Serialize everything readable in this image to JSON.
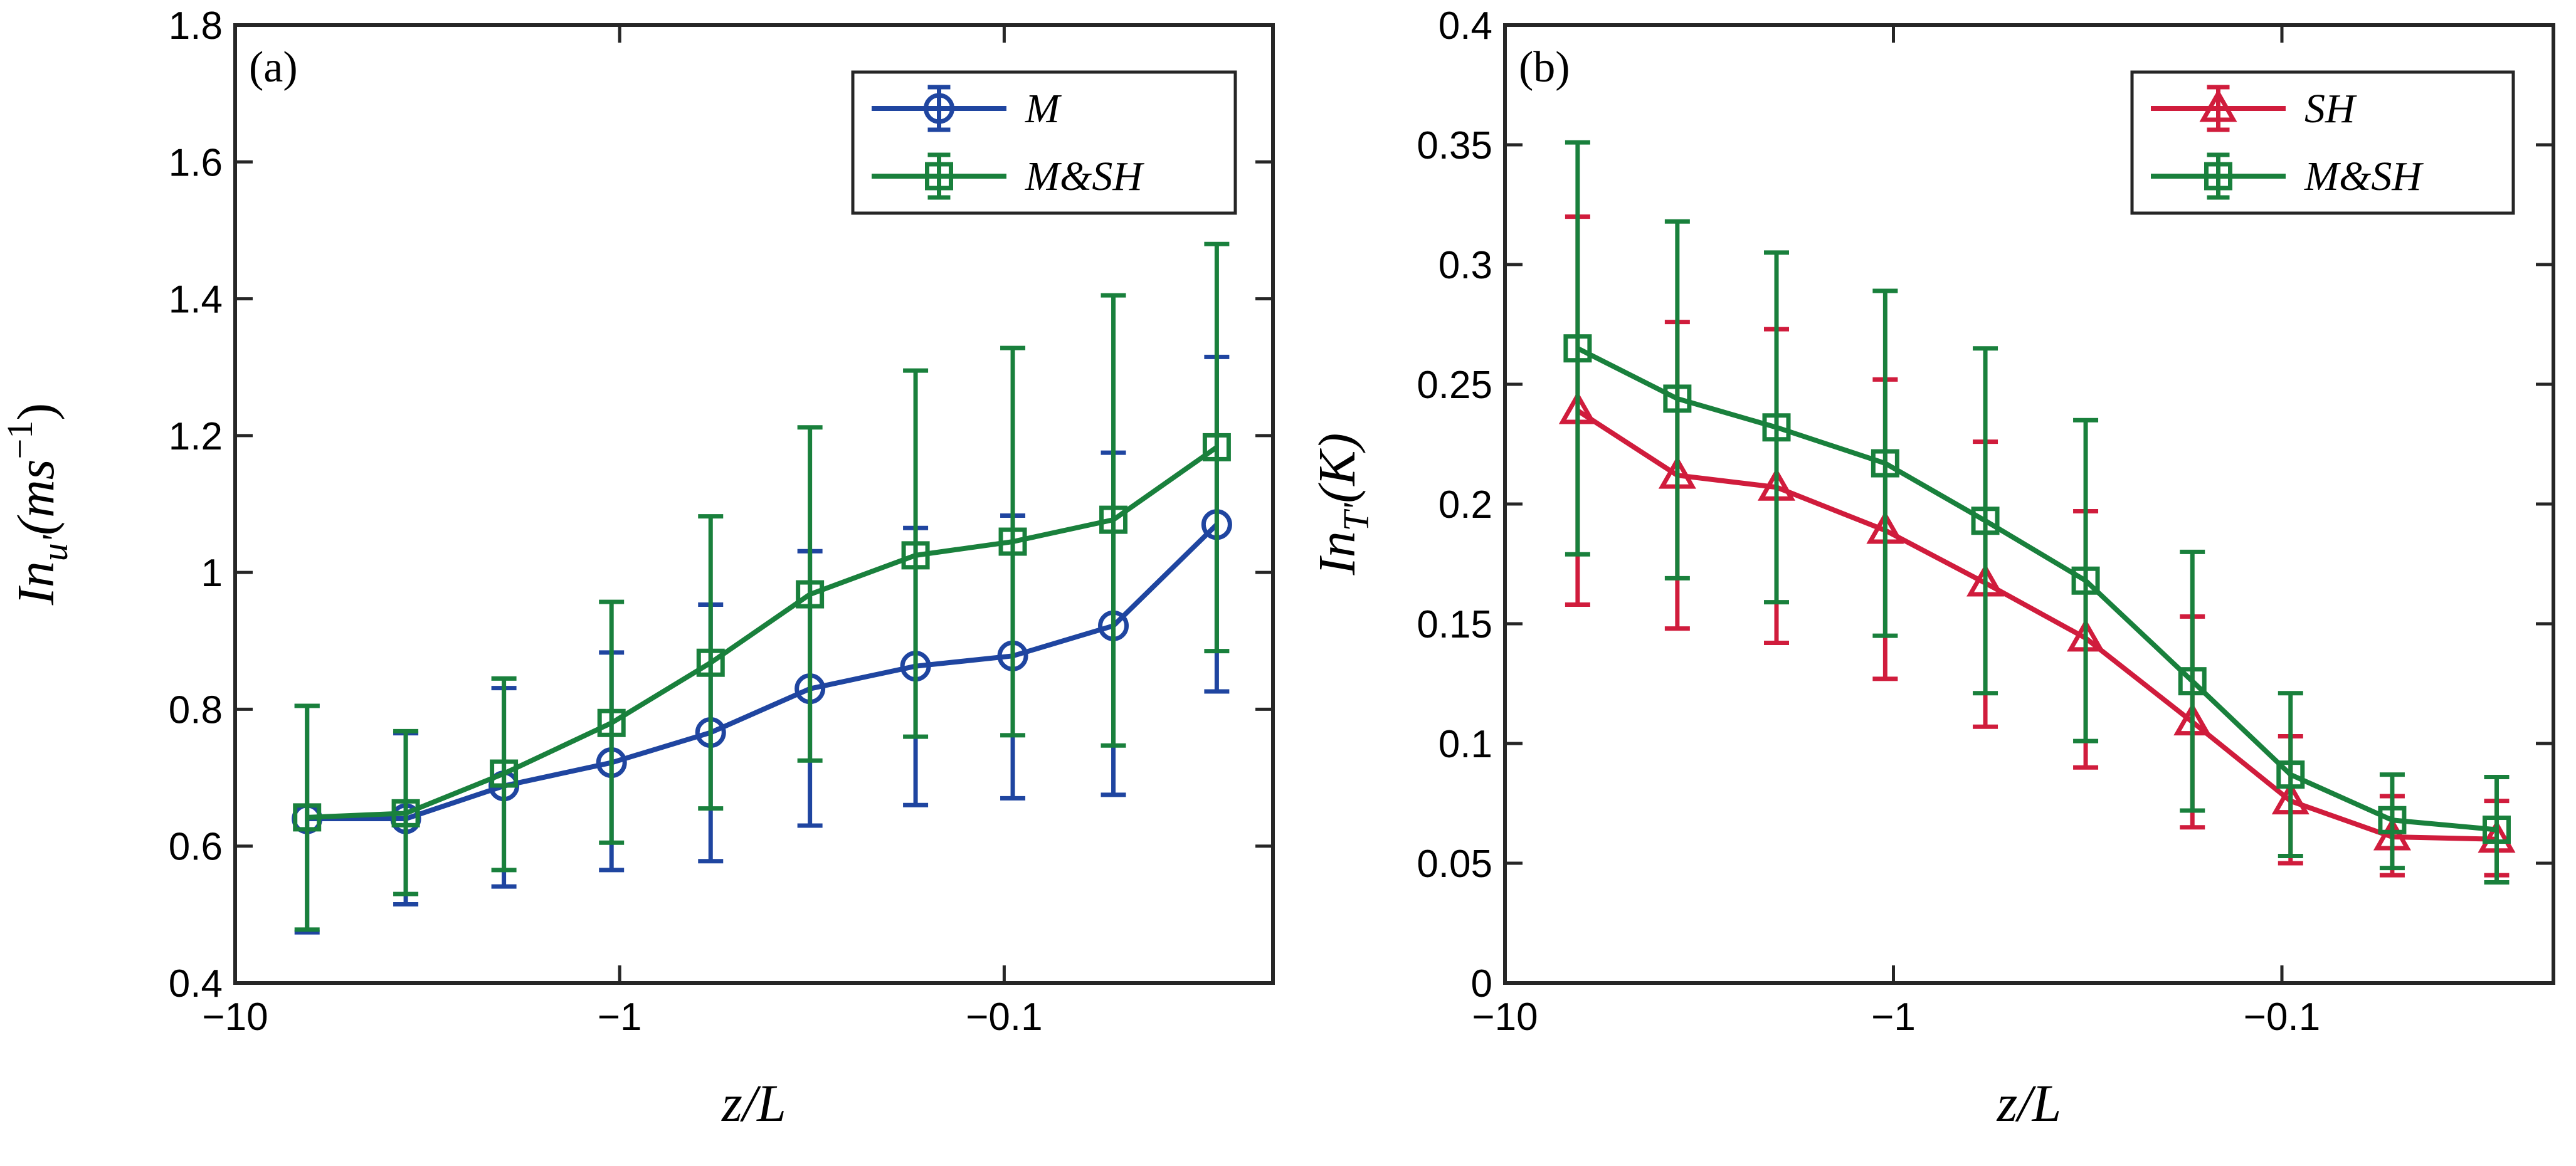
{
  "chart_data": [
    {
      "type": "line",
      "panel_label": "(a)",
      "x": [
        -6.5,
        -3.6,
        -2.0,
        -1.05,
        -0.58,
        -0.32,
        -0.17,
        -0.095,
        -0.052,
        -0.028
      ],
      "x_scale": "log-negative",
      "xlim": [
        -10,
        -0.02
      ],
      "xticks": [
        -10,
        -1,
        -0.1
      ],
      "xtick_labels": [
        "−10",
        "−1",
        "−0.1"
      ],
      "xlabel": "z/L",
      "ylim": [
        0.4,
        1.8
      ],
      "yticks": [
        0.4,
        0.6,
        0.8,
        1.0,
        1.2,
        1.4,
        1.6,
        1.8
      ],
      "ytick_labels": [
        "0.4",
        "0.6",
        "0.8",
        "1",
        "1.2",
        "1.4",
        "1.6",
        "1.8"
      ],
      "ylabel": "In_u'(ms^-1)",
      "legend_position": "top-right",
      "series": [
        {
          "name": "M",
          "color": "#1f45a0",
          "marker": "circle",
          "values": [
            0.64,
            0.64,
            0.688,
            0.722,
            0.766,
            0.83,
            0.863,
            0.878,
            0.922,
            1.07
          ],
          "err_low": [
            0.474,
            0.515,
            0.541,
            0.565,
            0.578,
            0.63,
            0.66,
            0.67,
            0.675,
            0.826
          ],
          "err_high": [
            0.805,
            0.765,
            0.831,
            0.883,
            0.953,
            1.031,
            1.065,
            1.083,
            1.175,
            1.315
          ]
        },
        {
          "name": "M&SH",
          "color": "#19803c",
          "marker": "square",
          "values": [
            0.642,
            0.648,
            0.706,
            0.78,
            0.868,
            0.968,
            1.025,
            1.045,
            1.077,
            1.183
          ],
          "err_low": [
            0.478,
            0.53,
            0.565,
            0.605,
            0.655,
            0.725,
            0.76,
            0.762,
            0.747,
            0.885
          ],
          "err_high": [
            0.805,
            0.768,
            0.845,
            0.957,
            1.082,
            1.212,
            1.295,
            1.328,
            1.405,
            1.48
          ]
        }
      ]
    },
    {
      "type": "line",
      "panel_label": "(b)",
      "x": [
        -6.5,
        -3.6,
        -2.0,
        -1.05,
        -0.58,
        -0.32,
        -0.17,
        -0.095,
        -0.052,
        -0.028
      ],
      "x_scale": "log-negative",
      "xlim": [
        -10,
        -0.02
      ],
      "xticks": [
        -10,
        -1,
        -0.1
      ],
      "xtick_labels": [
        "−10",
        "−1",
        "−0.1"
      ],
      "xlabel": "z/L",
      "ylim": [
        0,
        0.4
      ],
      "yticks": [
        0,
        0.05,
        0.1,
        0.15,
        0.2,
        0.25,
        0.3,
        0.35,
        0.4
      ],
      "ytick_labels": [
        "0",
        "0.05",
        "0.1",
        "0.15",
        "0.2",
        "0.25",
        "0.3",
        "0.35",
        "0.4"
      ],
      "ylabel": "In_T'(K)",
      "legend_position": "top-right",
      "series": [
        {
          "name": "SH",
          "color": "#d01c3c",
          "marker": "triangle",
          "values": [
            0.239,
            0.212,
            0.207,
            0.189,
            0.167,
            0.144,
            0.109,
            0.076,
            0.061,
            0.06
          ],
          "err_low": [
            0.158,
            0.148,
            0.142,
            0.127,
            0.107,
            0.09,
            0.065,
            0.05,
            0.045,
            0.045
          ],
          "err_high": [
            0.32,
            0.276,
            0.273,
            0.252,
            0.226,
            0.197,
            0.153,
            0.103,
            0.078,
            0.076
          ]
        },
        {
          "name": "M&SH",
          "color": "#19803c",
          "marker": "square",
          "values": [
            0.265,
            0.244,
            0.232,
            0.217,
            0.193,
            0.168,
            0.126,
            0.087,
            0.068,
            0.064
          ],
          "err_low": [
            0.179,
            0.169,
            0.159,
            0.145,
            0.121,
            0.101,
            0.072,
            0.053,
            0.048,
            0.042
          ],
          "err_high": [
            0.351,
            0.318,
            0.305,
            0.289,
            0.265,
            0.235,
            0.18,
            0.121,
            0.087,
            0.086
          ]
        }
      ]
    }
  ]
}
